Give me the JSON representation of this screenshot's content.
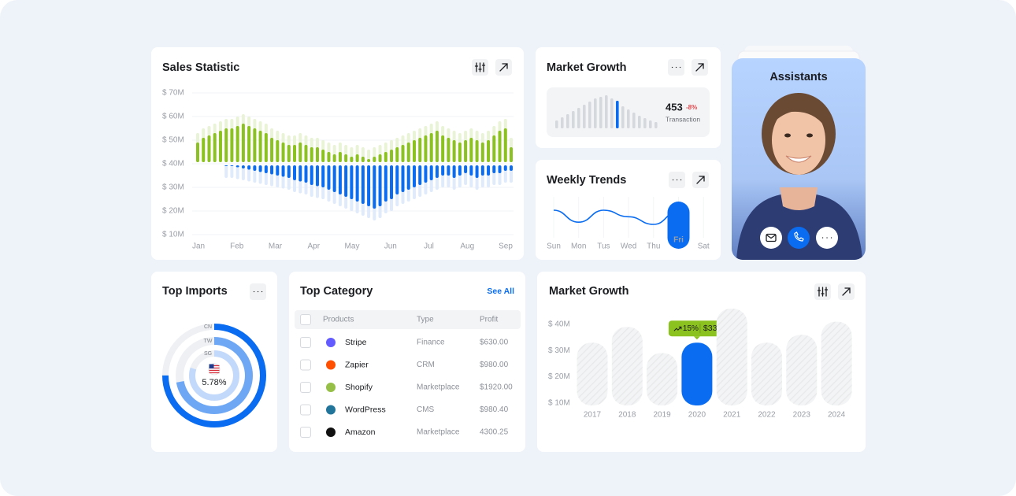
{
  "chart_data": [
    {
      "type": "diverging-bar",
      "title": "Sales Statistic",
      "xticks": [
        "Jan",
        "Feb",
        "Mar",
        "Apr",
        "May",
        "Jun",
        "Jul",
        "Aug",
        "Sep"
      ],
      "ylim": [
        10,
        70
      ],
      "base": 40,
      "yticks": [
        {
          "value": 70,
          "label": "$ 70M"
        },
        {
          "value": 60,
          "label": "$ 60M"
        },
        {
          "value": 50,
          "label": "$ 50M"
        },
        {
          "value": 40,
          "label": "$ 40M"
        },
        {
          "value": 30,
          "label": "$ 30M"
        },
        {
          "value": 20,
          "label": "$ 20M"
        },
        {
          "value": 10,
          "label": "$ 10M"
        }
      ],
      "grid": true,
      "series": [
        {
          "color": "#e9f3d6",
          "values": [
            53,
            55,
            56,
            57,
            58,
            59,
            59,
            60,
            61,
            60,
            59,
            58,
            57,
            55,
            54,
            53,
            52,
            52,
            53,
            52,
            51,
            51,
            50,
            49,
            48,
            49,
            48,
            47,
            48,
            47,
            46,
            47,
            48,
            49,
            50,
            51,
            52,
            53,
            54,
            55,
            56,
            57,
            58,
            56,
            55,
            54,
            53,
            54,
            55,
            54,
            53,
            54,
            56,
            58,
            59,
            51
          ]
        },
        {
          "color": "#8cc21f",
          "values": [
            49,
            51,
            52,
            53,
            54,
            55,
            55,
            56,
            57,
            56,
            55,
            54,
            53,
            51,
            50,
            49,
            48,
            48,
            49,
            48,
            47,
            47,
            46,
            45,
            44,
            45,
            44,
            43,
            44,
            43,
            42,
            43,
            44,
            45,
            46,
            47,
            48,
            49,
            50,
            51,
            52,
            53,
            54,
            52,
            51,
            50,
            49,
            50,
            51,
            50,
            49,
            50,
            52,
            54,
            55,
            47
          ]
        },
        {
          "color": "#dfeafb",
          "values": [
            null,
            null,
            null,
            null,
            null,
            34,
            34,
            33.5,
            33,
            32.5,
            32,
            31.5,
            31,
            30.5,
            30,
            29.5,
            29,
            28,
            27.5,
            27,
            26,
            25.5,
            25,
            24,
            23,
            22,
            21,
            20,
            19,
            18,
            17,
            16,
            17,
            19,
            20,
            22,
            23,
            24,
            25,
            26,
            27,
            28,
            29,
            30,
            30,
            29,
            30,
            31,
            30,
            29,
            30,
            30,
            31,
            31,
            32,
            32
          ]
        },
        {
          "color": "#0a6cf0",
          "values": [
            null,
            null,
            null,
            null,
            null,
            39,
            39,
            38.5,
            38,
            37.5,
            37,
            36.5,
            36,
            35.5,
            35,
            34.5,
            34,
            33,
            32.5,
            32,
            31,
            30.5,
            30,
            29,
            28,
            27,
            26,
            25,
            24,
            23,
            22,
            21,
            22,
            24,
            25,
            27,
            28,
            29,
            30,
            31,
            32,
            33,
            34,
            35,
            35,
            34,
            35,
            36,
            35,
            34,
            35,
            35,
            36,
            36,
            37,
            37
          ]
        }
      ]
    },
    {
      "type": "mini-bar",
      "title": "Market Growth",
      "values": [
        10,
        14,
        18,
        22,
        26,
        30,
        34,
        38,
        40,
        42,
        38,
        35,
        28,
        24,
        20,
        16,
        13,
        10,
        8
      ],
      "color": "#d5d8dd",
      "highlight": 11,
      "highlight_color": "#0a6cf0",
      "value": 453,
      "change": "-8%",
      "caption": "Transaction"
    },
    {
      "type": "line",
      "title": "Weekly Trends",
      "categories": [
        "Sun",
        "Mon",
        "Tus",
        "Wed",
        "Thu",
        "Fri",
        "Sat"
      ],
      "values": [
        31,
        20,
        31,
        25,
        18,
        30,
        null
      ],
      "color": "#0a6cf0",
      "highlight": 5
    },
    {
      "type": "radial",
      "title": "Top Imports",
      "categories": [
        "CN",
        "TW",
        "SG"
      ],
      "values": [
        75,
        72,
        80
      ],
      "colors": [
        "#0a6cf0",
        "#6ea8f5",
        "#c3d9fb"
      ],
      "center_label": "5.78%"
    },
    {
      "type": "bar",
      "title": "Market Growth",
      "categories": [
        "2017",
        "2018",
        "2019",
        "2020",
        "2021",
        "2022",
        "2023",
        "2024"
      ],
      "values": [
        33,
        39,
        29,
        33,
        46,
        33,
        36,
        41
      ],
      "ylim": [
        9,
        46
      ],
      "yticks": [
        {
          "value": 40,
          "label": "$ 40M"
        },
        {
          "value": 30,
          "label": "$ 30M"
        },
        {
          "value": 20,
          "label": "$ 20M"
        },
        {
          "value": 10,
          "label": "$ 10M"
        }
      ],
      "color": "#f1f2f4",
      "highlight": 3,
      "highlight_color": "#0a6cf0",
      "tooltip": {
        "change": "15%",
        "value": "$33M"
      }
    }
  ],
  "top_category": {
    "title": "Top Category",
    "action": "See All",
    "columns": [
      "Products",
      "Type",
      "Profit"
    ],
    "rows": [
      [
        "Stripe",
        "Finance",
        "$630.00"
      ],
      [
        "Zapier",
        "CRM",
        "$980.00"
      ],
      [
        "Shopify",
        "Marketplace",
        "$1920.00"
      ],
      [
        "WordPress",
        "CMS",
        "$980.40"
      ],
      [
        "Amazon",
        "Marketplace",
        "4300.25"
      ]
    ]
  },
  "assistants": {
    "title": "Assistants"
  }
}
